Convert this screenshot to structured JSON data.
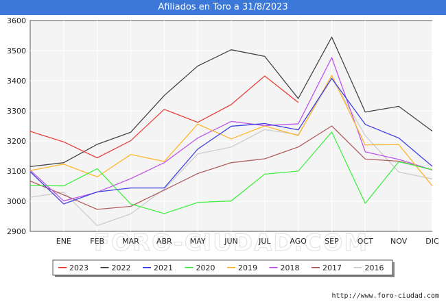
{
  "title": "Afiliados en Toro a 31/8/2023",
  "source": "http://www.foro-ciudad.com",
  "watermark": "FORO-CIUDAD.COM",
  "chart_data": {
    "type": "line",
    "title": "Afiliados en Toro a 31/8/2023",
    "x_ticks": [
      "ENE",
      "FEB",
      "MAR",
      "ABR",
      "MAY",
      "JUN",
      "JUL",
      "AGO",
      "SEP",
      "OCT",
      "NOV",
      "DIC"
    ],
    "ylim": [
      2900,
      3600
    ],
    "y_ticks": [
      2900,
      3000,
      3100,
      3200,
      3300,
      3400,
      3500,
      3600
    ],
    "grid": true,
    "legend_position": "bottom",
    "series": [
      {
        "name": "2023",
        "color": "#e8413c",
        "values": [
          3232,
          3197,
          3144,
          3201,
          3305,
          3262,
          3321,
          3416,
          3328
        ]
      },
      {
        "name": "2022",
        "color": "#444444",
        "values": [
          3115,
          3128,
          3189,
          3229,
          3351,
          3449,
          3503,
          3481,
          3341,
          3545,
          3296,
          3315,
          3233
        ]
      },
      {
        "name": "2021",
        "color": "#4040e0",
        "values": [
          3098,
          2991,
          3031,
          3044,
          3044,
          3173,
          3249,
          3258,
          3237,
          3408,
          3255,
          3210,
          3116
        ]
      },
      {
        "name": "2020",
        "color": "#44ee44",
        "values": [
          3052,
          3051,
          3108,
          2991,
          2959,
          2996,
          3001,
          3090,
          3100,
          3230,
          2993,
          3131,
          3105
        ]
      },
      {
        "name": "2019",
        "color": "#ffb62e",
        "values": [
          3102,
          3123,
          3081,
          3155,
          3132,
          3256,
          3207,
          3250,
          3218,
          3418,
          3187,
          3188,
          3051
        ]
      },
      {
        "name": "2018",
        "color": "#bd55e8",
        "values": [
          3103,
          3001,
          3030,
          3075,
          3128,
          3210,
          3265,
          3251,
          3257,
          3477,
          3164,
          3139,
          3104
        ]
      },
      {
        "name": "2017",
        "color": "#b05f5f",
        "values": [
          3067,
          3021,
          2973,
          2983,
          3037,
          3092,
          3128,
          3141,
          3180,
          3250,
          3140,
          3133,
          3104
        ]
      },
      {
        "name": "2016",
        "color": "#cccccc",
        "values": [
          3013,
          3030,
          2919,
          2958,
          3040,
          3157,
          3180,
          3238,
          3221,
          3409,
          3218,
          3097,
          3074
        ]
      }
    ]
  }
}
